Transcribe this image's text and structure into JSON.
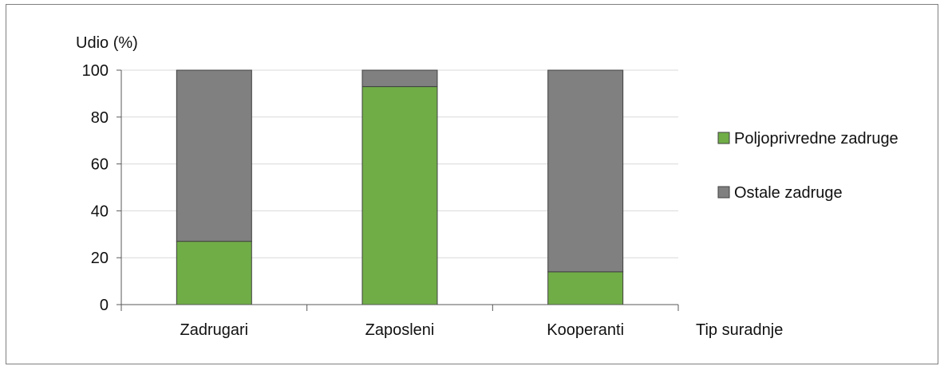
{
  "chart_data": {
    "type": "bar",
    "stacked": true,
    "ylabel": "Udio (%)",
    "xlabel": "Tip suradnje",
    "ylim": [
      0,
      100
    ],
    "yticks": [
      0,
      20,
      40,
      60,
      80,
      100
    ],
    "grid": true,
    "categories": [
      "Zadrugari",
      "Zaposleni",
      "Kooperanti"
    ],
    "series": [
      {
        "name": "Poljoprivredne zadruge",
        "color": "#70ad47",
        "values": [
          27,
          93,
          14
        ]
      },
      {
        "name": "Ostale zadruge",
        "color": "#808080",
        "values": [
          73,
          7,
          86
        ]
      }
    ],
    "legend_position": "right"
  }
}
